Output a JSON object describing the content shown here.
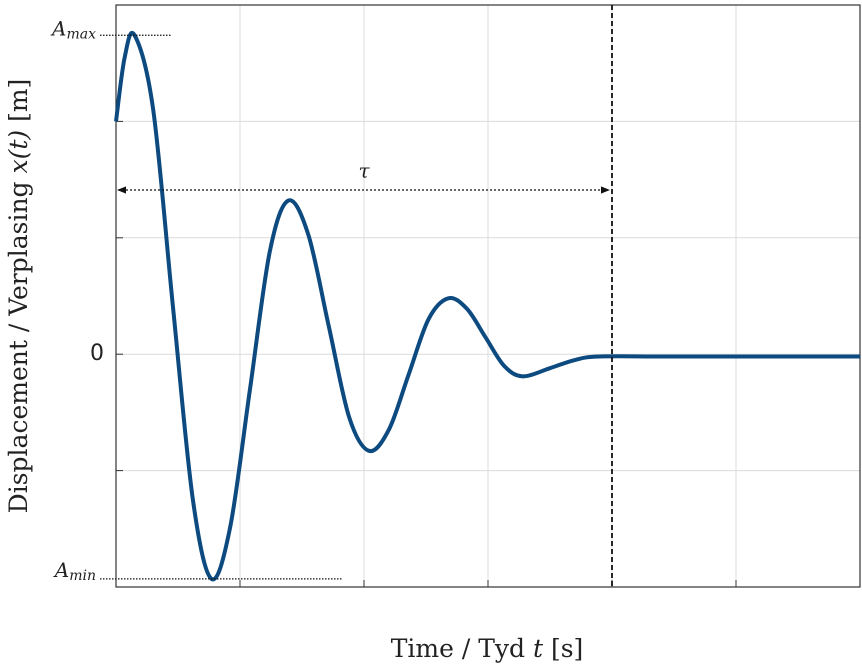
{
  "chart_data": {
    "type": "line",
    "xlabel": [
      {
        "text": "Time / Tyd ",
        "italic": false
      },
      {
        "text": "t",
        "italic": true
      },
      {
        "text": " [s]",
        "italic": false
      }
    ],
    "ylabel": [
      {
        "text": "Displacement / Verplasing ",
        "italic": false
      },
      {
        "text": "x(t)",
        "italic": true
      },
      {
        "text": " [m]",
        "italic": false
      }
    ],
    "xlim": [
      0,
      6
    ],
    "ylim": [
      -2,
      3
    ],
    "xticks": [
      {
        "value": 1,
        "label": null
      },
      {
        "value": 2,
        "label": null
      },
      {
        "value": 3,
        "label": null
      },
      {
        "value": 4,
        "label": null
      },
      {
        "value": 5,
        "label": null
      }
    ],
    "yticks": [
      {
        "value": -1,
        "label": null
      },
      0,
      {
        "value": 1,
        "label": null
      },
      {
        "value": 2,
        "label": null
      }
    ],
    "grid": true,
    "x": [
      0,
      0.07,
      0.15,
      0.3,
      0.46,
      0.62,
      0.77,
      0.92,
      1.08,
      1.24,
      1.39,
      1.55,
      1.715,
      1.88,
      2.04,
      2.2,
      2.36,
      2.52,
      2.68,
      2.83,
      2.98,
      3.13,
      3.28,
      3.5,
      3.7,
      3.9,
      4.5,
      6.0
    ],
    "series": [
      {
        "name": "x(t)",
        "color": "#0d4a80",
        "values": [
          2.0,
          2.55,
          2.74,
          2.1,
          0.4,
          -1.25,
          -1.93,
          -1.49,
          -0.305,
          0.88,
          1.32,
          1.03,
          0.245,
          -0.54,
          -0.83,
          -0.65,
          -0.175,
          0.3,
          0.48,
          0.39,
          0.145,
          -0.1,
          -0.19,
          -0.12,
          -0.05,
          -0.02,
          -0.02,
          -0.02
        ]
      }
    ],
    "vline": 4,
    "annotations": {
      "amax": {
        "text": "A",
        "subscript": "max"
      },
      "amin": {
        "text": "A",
        "subscript": "min"
      },
      "tau": "τ"
    }
  }
}
